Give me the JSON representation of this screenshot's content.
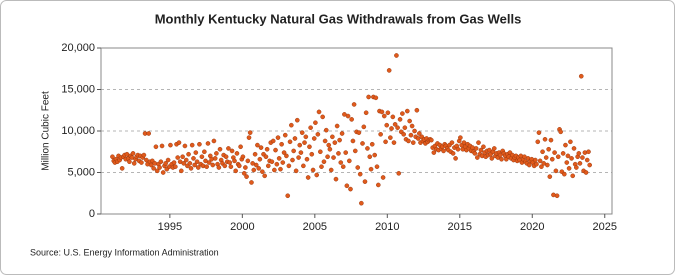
{
  "chart_data": {
    "type": "scatter",
    "title": "Monthly Kentucky Natural Gas Withdrawals from Gas Wells",
    "y_label": "Million Cubic Feet",
    "source": "Source: U.S. Energy Information Administration",
    "color": "#e05a1c",
    "xlim": [
      1990.25,
      2025.5
    ],
    "xticks": [
      1995,
      2000,
      2005,
      2010,
      2015,
      2020,
      2025
    ],
    "ylim": [
      0,
      20000
    ],
    "yticks": [
      0,
      {
        "value": 5000,
        "label": "5,000"
      },
      {
        "value": 10000,
        "label": "10,000"
      },
      {
        "value": 15000,
        "label": "15,000"
      },
      {
        "value": 20000,
        "label": "20,000"
      }
    ],
    "grid": true,
    "x": [
      1991.04,
      1991.13,
      1991.21,
      1991.29,
      1991.38,
      1991.46,
      1991.54,
      1991.63,
      1991.71,
      1991.79,
      1991.88,
      1991.96,
      1992.04,
      1992.13,
      1992.21,
      1992.29,
      1992.38,
      1992.46,
      1992.54,
      1992.63,
      1992.71,
      1992.79,
      1992.88,
      1992.96,
      1993.04,
      1993.13,
      1993.21,
      1993.29,
      1993.38,
      1993.46,
      1993.54,
      1993.63,
      1993.71,
      1993.79,
      1993.88,
      1993.96,
      1994.04,
      1994.13,
      1994.21,
      1994.29,
      1994.38,
      1994.46,
      1994.54,
      1994.63,
      1994.71,
      1994.79,
      1994.88,
      1994.96,
      1995.04,
      1995.13,
      1995.21,
      1995.29,
      1995.38,
      1995.46,
      1995.54,
      1995.63,
      1995.71,
      1995.79,
      1995.88,
      1995.96,
      1996.04,
      1996.13,
      1996.21,
      1996.29,
      1996.38,
      1996.46,
      1996.54,
      1996.63,
      1996.71,
      1996.79,
      1996.88,
      1996.96,
      1997.04,
      1997.13,
      1997.21,
      1997.29,
      1997.38,
      1997.46,
      1997.54,
      1997.63,
      1997.71,
      1997.79,
      1997.88,
      1997.96,
      1998.04,
      1998.13,
      1998.21,
      1998.29,
      1998.38,
      1998.46,
      1998.54,
      1998.63,
      1998.71,
      1998.79,
      1998.88,
      1998.96,
      1999.04,
      1999.13,
      1999.21,
      1999.29,
      1999.38,
      1999.46,
      1999.54,
      1999.63,
      1999.71,
      1999.79,
      1999.88,
      1999.96,
      2000.04,
      2000.13,
      2000.21,
      2000.29,
      2000.38,
      2000.46,
      2000.54,
      2000.63,
      2000.71,
      2000.79,
      2000.88,
      2000.96,
      2001.04,
      2001.13,
      2001.21,
      2001.29,
      2001.38,
      2001.46,
      2001.54,
      2001.63,
      2001.71,
      2001.79,
      2001.88,
      2001.96,
      2002.04,
      2002.13,
      2002.21,
      2002.29,
      2002.38,
      2002.46,
      2002.54,
      2002.63,
      2002.71,
      2002.79,
      2002.88,
      2002.96,
      2003.04,
      2003.13,
      2003.21,
      2003.29,
      2003.38,
      2003.46,
      2003.54,
      2003.63,
      2003.71,
      2003.79,
      2003.88,
      2003.96,
      2004.04,
      2004.13,
      2004.21,
      2004.29,
      2004.38,
      2004.46,
      2004.54,
      2004.63,
      2004.71,
      2004.79,
      2004.88,
      2004.96,
      2005.04,
      2005.13,
      2005.21,
      2005.29,
      2005.38,
      2005.46,
      2005.54,
      2005.63,
      2005.71,
      2005.79,
      2005.88,
      2005.96,
      2006.04,
      2006.13,
      2006.21,
      2006.29,
      2006.38,
      2006.46,
      2006.54,
      2006.63,
      2006.71,
      2006.79,
      2006.88,
      2006.96,
      2007.04,
      2007.13,
      2007.21,
      2007.29,
      2007.38,
      2007.46,
      2007.54,
      2007.63,
      2007.71,
      2007.79,
      2007.88,
      2007.96,
      2008.04,
      2008.13,
      2008.21,
      2008.29,
      2008.38,
      2008.46,
      2008.54,
      2008.63,
      2008.71,
      2008.79,
      2008.88,
      2008.96,
      2009.04,
      2009.13,
      2009.21,
      2009.29,
      2009.38,
      2009.46,
      2009.54,
      2009.63,
      2009.71,
      2009.79,
      2009.88,
      2009.96,
      2010.04,
      2010.13,
      2010.21,
      2010.29,
      2010.38,
      2010.46,
      2010.54,
      2010.63,
      2010.71,
      2010.79,
      2010.88,
      2010.96,
      2011.04,
      2011.13,
      2011.21,
      2011.29,
      2011.38,
      2011.46,
      2011.54,
      2011.63,
      2011.71,
      2011.79,
      2011.88,
      2011.96,
      2012.04,
      2012.13,
      2012.21,
      2012.29,
      2012.38,
      2012.46,
      2012.54,
      2012.63,
      2012.71,
      2012.79,
      2012.88,
      2012.96,
      2013.04,
      2013.13,
      2013.21,
      2013.29,
      2013.38,
      2013.46,
      2013.54,
      2013.63,
      2013.71,
      2013.79,
      2013.88,
      2013.96,
      2014.04,
      2014.13,
      2014.21,
      2014.29,
      2014.38,
      2014.46,
      2014.54,
      2014.63,
      2014.71,
      2014.79,
      2014.88,
      2014.96,
      2015.04,
      2015.13,
      2015.21,
      2015.29,
      2015.38,
      2015.46,
      2015.54,
      2015.63,
      2015.71,
      2015.79,
      2015.88,
      2015.96,
      2016.04,
      2016.13,
      2016.21,
      2016.29,
      2016.38,
      2016.46,
      2016.54,
      2016.63,
      2016.71,
      2016.79,
      2016.88,
      2016.96,
      2017.04,
      2017.13,
      2017.21,
      2017.29,
      2017.38,
      2017.46,
      2017.54,
      2017.63,
      2017.71,
      2017.79,
      2017.88,
      2017.96,
      2018.04,
      2018.13,
      2018.21,
      2018.29,
      2018.38,
      2018.46,
      2018.54,
      2018.63,
      2018.71,
      2018.79,
      2018.88,
      2018.96,
      2019.04,
      2019.13,
      2019.21,
      2019.29,
      2019.38,
      2019.46,
      2019.54,
      2019.63,
      2019.71,
      2019.79,
      2019.88,
      2019.96,
      2020.04,
      2020.13,
      2020.21,
      2020.29,
      2020.38,
      2020.46,
      2020.54,
      2020.63,
      2020.71,
      2020.79,
      2020.88,
      2020.96,
      2021.04,
      2021.13,
      2021.21,
      2021.29,
      2021.38,
      2021.46,
      2021.54,
      2021.63,
      2021.71,
      2021.79,
      2021.88,
      2021.96,
      2022.04,
      2022.13,
      2022.21,
      2022.29,
      2022.38,
      2022.46,
      2022.54,
      2022.63,
      2022.71,
      2022.79,
      2022.88,
      2022.96,
      2023.04,
      2023.13,
      2023.21,
      2023.29,
      2023.38,
      2023.46,
      2023.54,
      2023.63,
      2023.71,
      2023.79,
      2023.88,
      2023.96
    ],
    "values": [
      6900,
      6400,
      6200,
      6600,
      6300,
      7000,
      6500,
      6800,
      5500,
      6900,
      7100,
      6600,
      7200,
      6700,
      6300,
      7000,
      6800,
      7300,
      6100,
      6600,
      6900,
      7100,
      6400,
      7000,
      6200,
      6800,
      7100,
      9700,
      6500,
      6000,
      9700,
      6300,
      5900,
      6400,
      5500,
      6100,
      8100,
      5200,
      6000,
      5600,
      6300,
      8200,
      5000,
      5800,
      6100,
      5400,
      6500,
      5700,
      8300,
      6000,
      5600,
      6200,
      5700,
      8400,
      6800,
      8600,
      6300,
      5200,
      6900,
      6100,
      8200,
      6500,
      5800,
      7200,
      6100,
      5500,
      8300,
      6700,
      5900,
      7400,
      6300,
      5600,
      8400,
      6000,
      6900,
      5800,
      7500,
      6400,
      5700,
      8500,
      6200,
      7000,
      6600,
      5900,
      8800,
      6700,
      7300,
      6000,
      5600,
      7800,
      6500,
      6100,
      7100,
      5800,
      6900,
      6300,
      7900,
      6200,
      5700,
      7600,
      6800,
      6400,
      5200,
      7300,
      6000,
      5800,
      8100,
      6600,
      6900,
      4900,
      5600,
      4500,
      6400,
      9200,
      9800,
      3800,
      6100,
      5300,
      7200,
      5900,
      8300,
      5500,
      6600,
      8000,
      5100,
      7200,
      4600,
      6900,
      7800,
      5800,
      6400,
      8600,
      6300,
      8800,
      5300,
      7700,
      6000,
      9200,
      6700,
      5400,
      8400,
      6200,
      7400,
      9500,
      7000,
      2200,
      5800,
      8700,
      10700,
      6500,
      7600,
      9100,
      5200,
      11300,
      6800,
      8300,
      7400,
      9800,
      5800,
      8600,
      9300,
      6600,
      4400,
      8100,
      10400,
      7200,
      5300,
      9100,
      11000,
      4700,
      9600,
      12300,
      7500,
      5700,
      11700,
      6300,
      8800,
      10100,
      6900,
      8300,
      7800,
      5300,
      9300,
      6800,
      8600,
      4200,
      10600,
      7300,
      8900,
      6200,
      9700,
      5700,
      12000,
      7400,
      3400,
      11800,
      6400,
      3000,
      11400,
      8800,
      13200,
      7600,
      9900,
      5600,
      9800,
      4800,
      1300,
      8500,
      10500,
      3900,
      12200,
      7900,
      14100,
      6900,
      5400,
      8400,
      14100,
      7100,
      14000,
      5700,
      3500,
      12400,
      9600,
      12300,
      4400,
      11800,
      8700,
      10700,
      12200,
      17300,
      9200,
      10300,
      11700,
      8600,
      10800,
      19100,
      10400,
      4900,
      11400,
      9900,
      12100,
      9600,
      10400,
      9000,
      12400,
      8800,
      11200,
      9500,
      10600,
      8600,
      10000,
      9300,
      12500,
      9100,
      9700,
      8600,
      9300,
      8800,
      9000,
      8500,
      9100,
      8700,
      8900,
      9000,
      8900,
      8000,
      7400,
      8200,
      7800,
      8500,
      7700,
      8300,
      7900,
      8100,
      7600,
      8400,
      8200,
      7900,
      7700,
      8300,
      7500,
      8600,
      7300,
      8000,
      6700,
      8200,
      7800,
      8800,
      9200,
      8300,
      7800,
      8600,
      8100,
      7700,
      8400,
      7900,
      8200,
      7600,
      8000,
      7500,
      7300,
      7900,
      6800,
      8600,
      7200,
      7700,
      7000,
      8100,
      7400,
      6900,
      7600,
      7100,
      7700,
      7200,
      6700,
      7500,
      7900,
      7000,
      7300,
      6800,
      7400,
      7100,
      6600,
      7600,
      7300,
      7000,
      6600,
      7200,
      6900,
      7400,
      6700,
      7100,
      6500,
      6800,
      7000,
      6400,
      6800,
      6500,
      7000,
      6200,
      6600,
      6900,
      6300,
      6100,
      6700,
      5900,
      6400,
      6600,
      6200,
      5800,
      6500,
      6000,
      8700,
      9800,
      6400,
      5700,
      7500,
      6100,
      9000,
      6800,
      5900,
      7800,
      4500,
      8900,
      6600,
      2300,
      7400,
      5200,
      2200,
      6900,
      10200,
      9900,
      5100,
      7300,
      4800,
      8300,
      6200,
      7000,
      5500,
      8700,
      6700,
      4600,
      7900,
      6000,
      5600,
      6900,
      7300,
      6100,
      16600,
      6800,
      5200,
      7400,
      5000,
      6500,
      7500,
      5900
    ]
  }
}
